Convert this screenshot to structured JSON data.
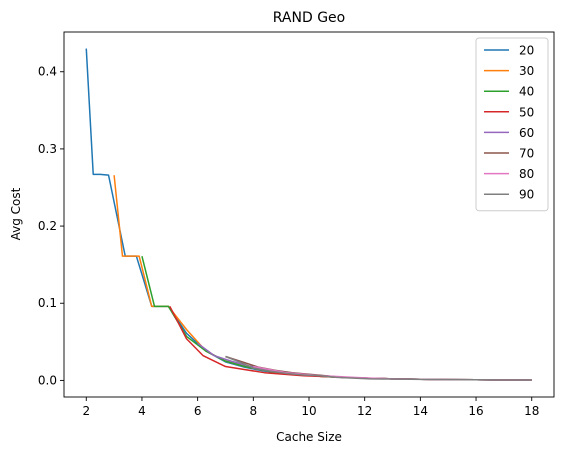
{
  "chart_data": {
    "type": "line",
    "title": "RAND Geo",
    "xlabel": "Cache Size",
    "ylabel": "Avg Cost",
    "xlim": [
      1.2,
      18.8
    ],
    "ylim": [
      -0.0215,
      0.4515
    ],
    "xticks": [
      2,
      4,
      6,
      8,
      10,
      12,
      14,
      16,
      18
    ],
    "yticks": [
      0.0,
      0.1,
      0.2,
      0.3,
      0.4
    ],
    "xtick_labels": [
      "2",
      "4",
      "6",
      "8",
      "10",
      "12",
      "14",
      "16",
      "18"
    ],
    "ytick_labels": [
      "0.0",
      "0.1",
      "0.2",
      "0.3",
      "0.4"
    ],
    "grid": false,
    "legend_position": "top-right",
    "series": [
      {
        "name": "20",
        "color": "#1f77b4",
        "x": [
          2.0,
          2.25,
          2.5,
          2.8,
          3.4,
          3.8,
          4.35,
          4.95,
          5.6,
          6.3,
          7.0,
          7.7,
          8.4,
          9.1,
          9.8,
          10.5,
          11.2,
          12.0,
          13.0,
          14.0,
          15.0,
          16.0,
          17.0,
          18.0
        ],
        "y": [
          0.43,
          0.267,
          0.267,
          0.266,
          0.161,
          0.161,
          0.096,
          0.096,
          0.061,
          0.038,
          0.024,
          0.017,
          0.012,
          0.009,
          0.007,
          0.005,
          0.004,
          0.003,
          0.002,
          0.0015,
          0.001,
          0.0008,
          0.0005,
          0.0004
        ]
      },
      {
        "name": "30",
        "color": "#ff7f0e",
        "x": [
          3.0,
          3.3,
          3.55,
          3.9,
          4.35,
          4.95,
          5.6,
          6.3,
          7.0,
          7.7,
          8.4,
          9.1,
          9.8,
          10.5,
          11.2,
          12.0,
          13.0,
          14.0,
          15.0,
          16.0,
          17.0,
          18.0
        ],
        "y": [
          0.266,
          0.161,
          0.161,
          0.161,
          0.096,
          0.096,
          0.066,
          0.038,
          0.025,
          0.018,
          0.013,
          0.009,
          0.007,
          0.005,
          0.004,
          0.003,
          0.002,
          0.0015,
          0.001,
          0.0008,
          0.0005,
          0.0004
        ]
      },
      {
        "name": "40",
        "color": "#2ca02c",
        "x": [
          4.0,
          4.45,
          4.95,
          5.6,
          6.3,
          7.0,
          7.7,
          8.4,
          9.1,
          9.8,
          10.5,
          11.2,
          12.0,
          13.0,
          14.0,
          15.0,
          16.0,
          17.0,
          18.0
        ],
        "y": [
          0.161,
          0.096,
          0.096,
          0.057,
          0.038,
          0.025,
          0.018,
          0.013,
          0.009,
          0.007,
          0.005,
          0.004,
          0.003,
          0.002,
          0.0015,
          0.001,
          0.0008,
          0.0005,
          0.0004
        ]
      },
      {
        "name": "50",
        "color": "#d62728",
        "x": [
          5.0,
          5.6,
          6.2,
          7.0,
          7.7,
          8.4,
          9.1,
          9.8,
          10.5,
          11.2,
          12.0,
          13.0,
          14.0,
          15.0,
          16.0,
          17.0,
          18.0
        ],
        "y": [
          0.096,
          0.054,
          0.032,
          0.018,
          0.014,
          0.01,
          0.008,
          0.006,
          0.005,
          0.004,
          0.003,
          0.002,
          0.0015,
          0.001,
          0.0008,
          0.0005,
          0.0004
        ]
      },
      {
        "name": "60",
        "color": "#9467bd",
        "x": [
          6.0,
          6.6,
          7.2,
          7.8,
          8.4,
          9.1,
          9.8,
          10.5,
          11.2,
          12.0,
          13.0,
          14.0,
          15.0,
          16.0,
          17.0,
          18.0
        ],
        "y": [
          0.048,
          0.032,
          0.025,
          0.019,
          0.015,
          0.011,
          0.008,
          0.006,
          0.004,
          0.003,
          0.002,
          0.0015,
          0.001,
          0.0008,
          0.0005,
          0.0004
        ]
      },
      {
        "name": "70",
        "color": "#8c564b",
        "x": [
          7.0,
          7.6,
          8.2,
          8.8,
          9.4,
          10.0,
          10.6,
          11.2,
          12.0,
          13.0,
          14.0,
          15.0,
          16.0,
          17.0,
          18.0
        ],
        "y": [
          0.031,
          0.024,
          0.017,
          0.013,
          0.01,
          0.008,
          0.006,
          0.004,
          0.003,
          0.002,
          0.0015,
          0.001,
          0.0008,
          0.0005,
          0.0004
        ]
      },
      {
        "name": "80",
        "color": "#e377c2",
        "x": [
          8.0,
          8.6,
          9.2,
          9.8,
          10.4,
          11.0,
          11.6,
          12.2,
          13.0,
          14.0,
          15.0,
          16.0,
          17.0,
          18.0
        ],
        "y": [
          0.018,
          0.014,
          0.01,
          0.008,
          0.006,
          0.005,
          0.004,
          0.003,
          0.002,
          0.0015,
          0.001,
          0.0008,
          0.0005,
          0.0004
        ]
      },
      {
        "name": "90",
        "color": "#7f7f7f",
        "x": [
          7.0,
          7.5,
          8.0,
          8.6,
          9.2,
          9.8,
          10.4,
          11.0,
          11.6,
          12.2,
          13.0,
          14.0,
          15.0,
          16.0,
          17.0,
          18.0
        ],
        "y": [
          0.031,
          0.024,
          0.016,
          0.012,
          0.009,
          0.007,
          0.006,
          0.004,
          0.003,
          0.002,
          0.0018,
          0.0014,
          0.001,
          0.0008,
          0.0005,
          0.0004
        ]
      }
    ]
  }
}
